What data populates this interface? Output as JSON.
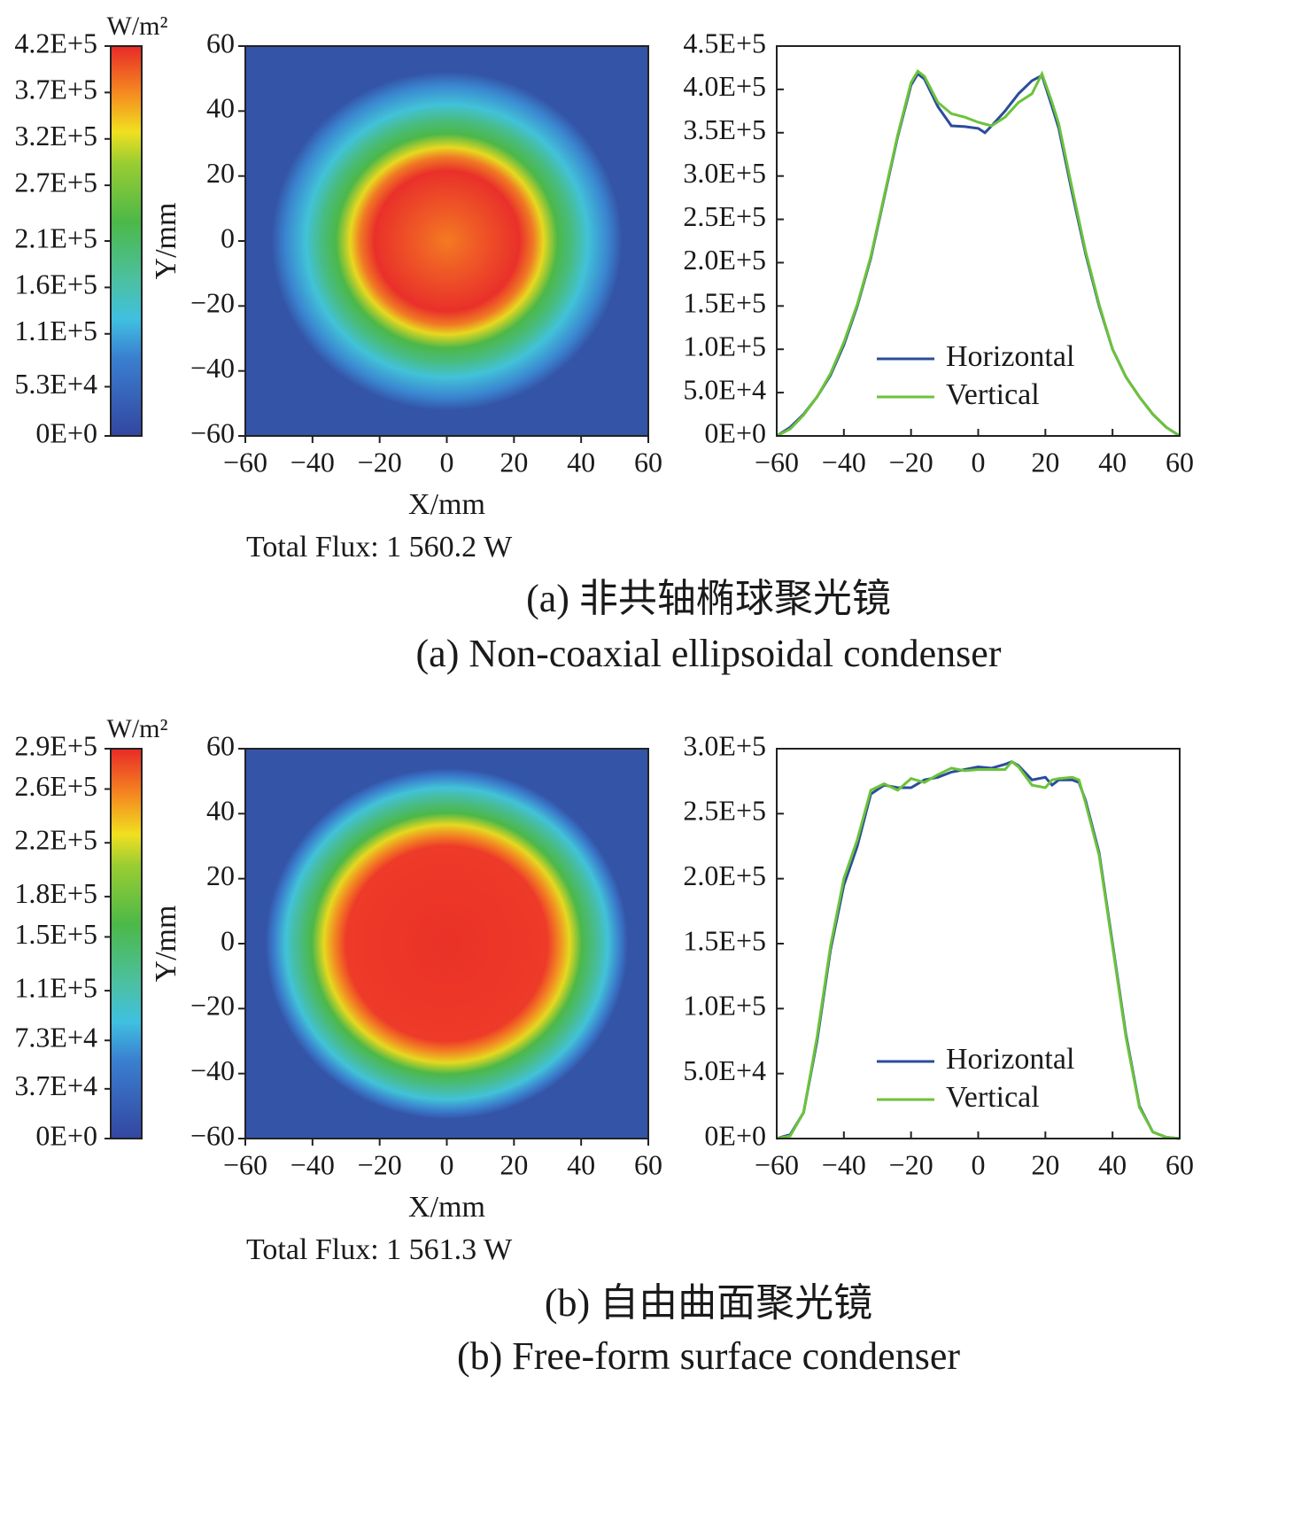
{
  "chart_data": [
    {
      "type": "heatmap",
      "xlabel": "X/mm",
      "ylabel": "Y/mm",
      "xlim": [
        -60,
        60
      ],
      "ylim": [
        -60,
        60
      ],
      "xticks": [
        {
          "value": -60,
          "label": "−60"
        },
        {
          "value": -40,
          "label": "−40"
        },
        {
          "value": -20,
          "label": "−20"
        },
        0,
        20,
        40,
        60
      ],
      "yticks": [
        {
          "value": -60,
          "label": "−60"
        },
        {
          "value": -40,
          "label": "−40"
        },
        {
          "value": -20,
          "label": "−20"
        },
        0,
        20,
        40,
        60
      ],
      "colorbar": {
        "label": "W/m²",
        "lim": [
          0,
          420000
        ],
        "ticks": [
          {
            "value": 0,
            "label": "0E+0"
          },
          {
            "value": 53000,
            "label": "5.3E+4"
          },
          {
            "value": 110000,
            "label": "1.1E+5"
          },
          {
            "value": 160000,
            "label": "1.6E+5"
          },
          {
            "value": 210000,
            "label": "2.1E+5"
          },
          {
            "value": 270000,
            "label": "2.7E+5"
          },
          {
            "value": 320000,
            "label": "3.2E+5"
          },
          {
            "value": 370000,
            "label": "3.7E+5"
          },
          {
            "value": 420000,
            "label": "4.2E+5"
          }
        ]
      },
      "annotation": "Total Flux: 1 560.2 W"
    },
    {
      "type": "line",
      "xlim": [
        -60,
        60
      ],
      "ylim": [
        0,
        450000
      ],
      "xticks": [
        {
          "value": -60,
          "label": "−60"
        },
        {
          "value": -40,
          "label": "−40"
        },
        {
          "value": -20,
          "label": "−20"
        },
        0,
        20,
        40,
        60
      ],
      "yticks": [
        {
          "value": 0,
          "label": "0E+0"
        },
        {
          "value": 50000,
          "label": "5.0E+4"
        },
        {
          "value": 100000,
          "label": "1.0E+5"
        },
        {
          "value": 150000,
          "label": "1.5E+5"
        },
        {
          "value": 200000,
          "label": "2.0E+5"
        },
        {
          "value": 250000,
          "label": "2.5E+5"
        },
        {
          "value": 300000,
          "label": "3.0E+5"
        },
        {
          "value": 350000,
          "label": "3.5E+5"
        },
        {
          "value": 400000,
          "label": "4.0E+5"
        },
        {
          "value": 450000,
          "label": "4.5E+5"
        }
      ],
      "x": [
        -60,
        -56,
        -52,
        -48,
        -44,
        -40,
        -36,
        -32,
        -28,
        -24,
        -20,
        -18,
        -16,
        -12,
        -8,
        -4,
        0,
        2,
        4,
        8,
        12,
        16,
        19,
        22,
        24,
        28,
        32,
        36,
        40,
        44,
        48,
        52,
        56,
        60
      ],
      "series": [
        {
          "name": "Horizontal",
          "color": "#2b4c9b",
          "values": [
            0,
            10000,
            25000,
            45000,
            70000,
            105000,
            150000,
            205000,
            275000,
            345000,
            405000,
            418000,
            412000,
            380000,
            358000,
            357000,
            355000,
            350000,
            358000,
            375000,
            395000,
            410000,
            416000,
            380000,
            355000,
            280000,
            210000,
            150000,
            100000,
            68000,
            45000,
            25000,
            10000,
            0
          ]
        },
        {
          "name": "Vertical",
          "color": "#6cc33a",
          "values": [
            0,
            8000,
            24000,
            45000,
            72000,
            108000,
            152000,
            207000,
            277000,
            347000,
            408000,
            421000,
            415000,
            385000,
            372000,
            368000,
            362000,
            360000,
            358000,
            368000,
            385000,
            395000,
            418000,
            385000,
            360000,
            285000,
            213000,
            152000,
            100000,
            68000,
            45000,
            25000,
            10000,
            0
          ]
        }
      ],
      "legend": "lower right"
    },
    {
      "type": "heatmap",
      "xlabel": "X/mm",
      "ylabel": "Y/mm",
      "xlim": [
        -60,
        60
      ],
      "ylim": [
        -60,
        60
      ],
      "xticks": [
        {
          "value": -60,
          "label": "−60"
        },
        {
          "value": -40,
          "label": "−40"
        },
        {
          "value": -20,
          "label": "−20"
        },
        0,
        20,
        40,
        60
      ],
      "yticks": [
        {
          "value": -60,
          "label": "−60"
        },
        {
          "value": -40,
          "label": "−40"
        },
        {
          "value": -20,
          "label": "−20"
        },
        0,
        20,
        40,
        60
      ],
      "colorbar": {
        "label": "W/m²",
        "lim": [
          0,
          290000
        ],
        "ticks": [
          {
            "value": 0,
            "label": "0E+0"
          },
          {
            "value": 37000,
            "label": "3.7E+4"
          },
          {
            "value": 73000,
            "label": "7.3E+4"
          },
          {
            "value": 110000,
            "label": "1.1E+5"
          },
          {
            "value": 150000,
            "label": "1.5E+5"
          },
          {
            "value": 180000,
            "label": "1.8E+5"
          },
          {
            "value": 220000,
            "label": "2.2E+5"
          },
          {
            "value": 260000,
            "label": "2.6E+5"
          },
          {
            "value": 290000,
            "label": "2.9E+5"
          }
        ]
      },
      "annotation": "Total Flux: 1 561.3 W"
    },
    {
      "type": "line",
      "xlim": [
        -60,
        60
      ],
      "ylim": [
        0,
        300000
      ],
      "xticks": [
        {
          "value": -60,
          "label": "−60"
        },
        {
          "value": -40,
          "label": "−40"
        },
        {
          "value": -20,
          "label": "−20"
        },
        0,
        20,
        40,
        60
      ],
      "yticks": [
        {
          "value": 0,
          "label": "0E+0"
        },
        {
          "value": 50000,
          "label": "5.0E+4"
        },
        {
          "value": 100000,
          "label": "1.0E+5"
        },
        {
          "value": 150000,
          "label": "1.5E+5"
        },
        {
          "value": 200000,
          "label": "2.0E+5"
        },
        {
          "value": 250000,
          "label": "2.5E+5"
        },
        {
          "value": 300000,
          "label": "3.0E+5"
        }
      ],
      "x": [
        -60,
        -56,
        -52,
        -48,
        -44,
        -40,
        -36,
        -32,
        -28,
        -24,
        -20,
        -16,
        -12,
        -8,
        -4,
        0,
        4,
        8,
        10,
        12,
        16,
        20,
        22,
        24,
        28,
        30,
        32,
        36,
        40,
        44,
        48,
        52,
        56,
        60
      ],
      "series": [
        {
          "name": "Horizontal",
          "color": "#2b4c9b",
          "values": [
            0,
            3000,
            20000,
            75000,
            145000,
            195000,
            225000,
            265000,
            272000,
            270000,
            270000,
            276000,
            278000,
            282000,
            284000,
            286000,
            285000,
            288000,
            290000,
            287000,
            276000,
            278000,
            272000,
            276000,
            276000,
            274000,
            260000,
            220000,
            150000,
            80000,
            25000,
            5000,
            1000,
            0
          ]
        },
        {
          "name": "Vertical",
          "color": "#6cc33a",
          "values": [
            0,
            2000,
            20000,
            78000,
            148000,
            200000,
            230000,
            268000,
            273000,
            268000,
            277000,
            274000,
            280000,
            285000,
            283000,
            284000,
            284000,
            284000,
            290000,
            286000,
            272000,
            270000,
            276000,
            277000,
            278000,
            276000,
            258000,
            218000,
            148000,
            78000,
            24000,
            5000,
            1000,
            0
          ]
        }
      ],
      "legend": "lower right"
    }
  ],
  "captions": [
    [
      "(a) 非共轴椭球聚光镜",
      "(a) Non-coaxial ellipsoidal condenser"
    ],
    [
      "(b) 自由曲面聚光镜",
      "(b) Free-form surface condenser"
    ]
  ]
}
